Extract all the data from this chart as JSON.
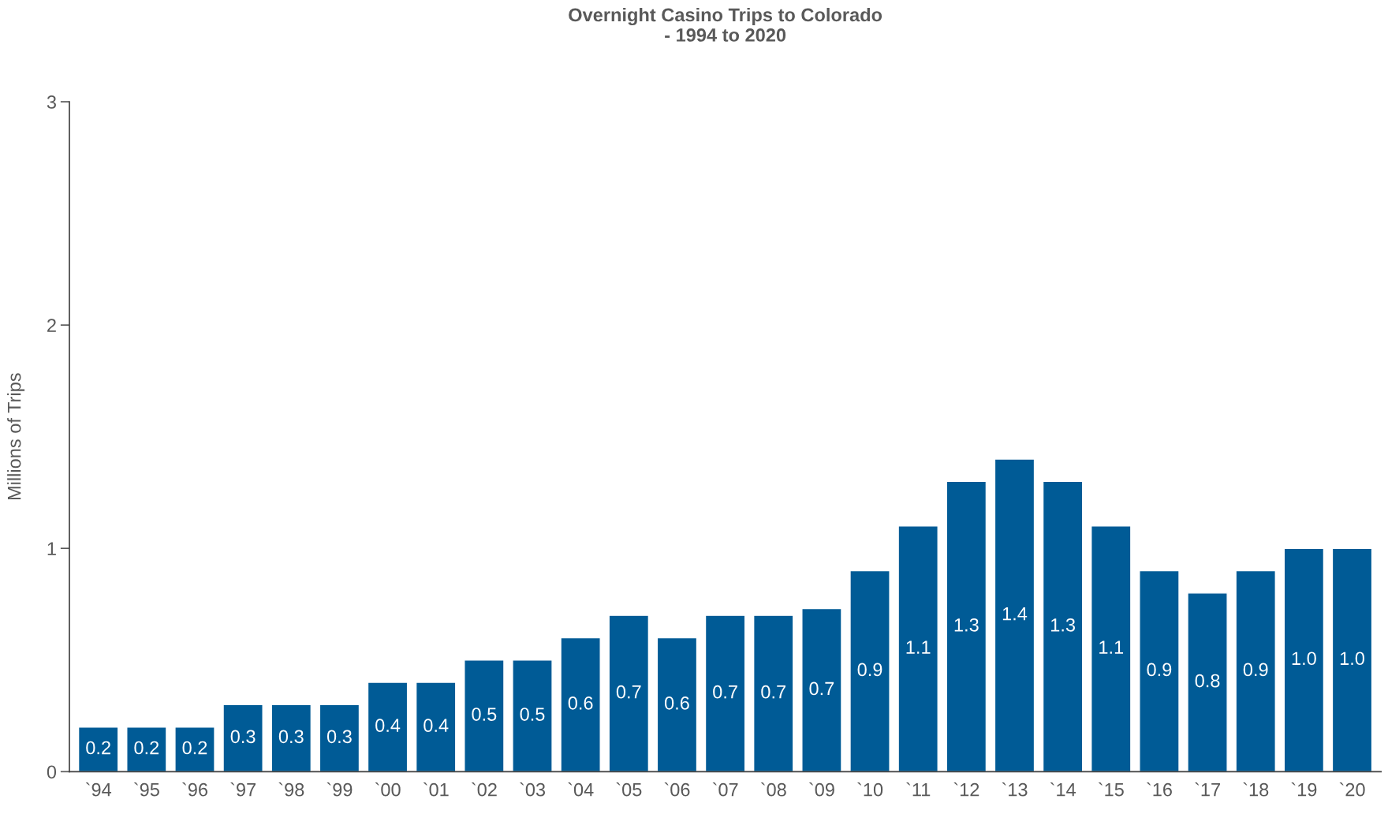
{
  "chart_data": {
    "type": "bar",
    "title": "Overnight Casino Trips to Colorado\n- 1994 to 2020",
    "ylabel": "Millions of Trips",
    "categories": [
      "`94",
      "`95",
      "`96",
      "`97",
      "`98",
      "`99",
      "`00",
      "`01",
      "`02",
      "`03",
      "`04",
      "`05",
      "`06",
      "`07",
      "`08",
      "`09",
      "`10",
      "`11",
      "`12",
      "`13",
      "`14",
      "`15",
      "`16",
      "`17",
      "`18",
      "`19",
      "`20"
    ],
    "values": [
      0.2,
      0.2,
      0.2,
      0.3,
      0.3,
      0.3,
      0.4,
      0.4,
      0.5,
      0.5,
      0.6,
      0.7,
      0.6,
      0.7,
      0.7,
      0.73,
      0.9,
      1.1,
      1.3,
      1.4,
      1.3,
      1.1,
      0.9,
      0.8,
      0.9,
      1.0,
      1.0
    ],
    "value_labels": [
      "0.2",
      "0.2",
      "0.2",
      "0.3",
      "0.3",
      "0.3",
      "0.4",
      "0.4",
      "0.5",
      "0.5",
      "0.6",
      "0.7",
      "0.6",
      "0.7",
      "0.7",
      "0.7",
      "0.9",
      "1.1",
      "1.3",
      "1.4",
      "1.3",
      "1.1",
      "0.9",
      "0.8",
      "0.9",
      "1.0",
      "1.0"
    ],
    "color": "#005b96",
    "ylim": [
      0,
      3
    ],
    "yticks": [
      0,
      1,
      2,
      3
    ],
    "grid": false,
    "legend": false
  }
}
